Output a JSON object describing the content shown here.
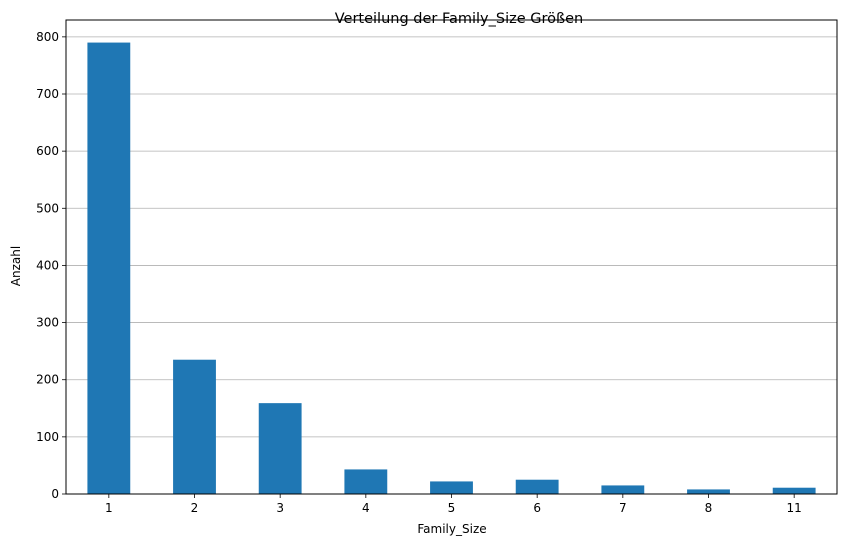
{
  "chart_data": {
    "type": "bar",
    "title": "Verteilung der Family_Size Größen",
    "xlabel": "Family_Size",
    "ylabel": "Anzahl",
    "categories": [
      "1",
      "2",
      "3",
      "4",
      "5",
      "6",
      "7",
      "8",
      "11"
    ],
    "values": [
      790,
      235,
      159,
      43,
      22,
      25,
      15,
      8,
      11
    ],
    "ylim": [
      0,
      829.5
    ],
    "yticks": [
      0,
      100,
      200,
      300,
      400,
      500,
      600,
      700,
      800
    ],
    "grid": "y-axis only",
    "bar_color": "#1f77b4"
  }
}
